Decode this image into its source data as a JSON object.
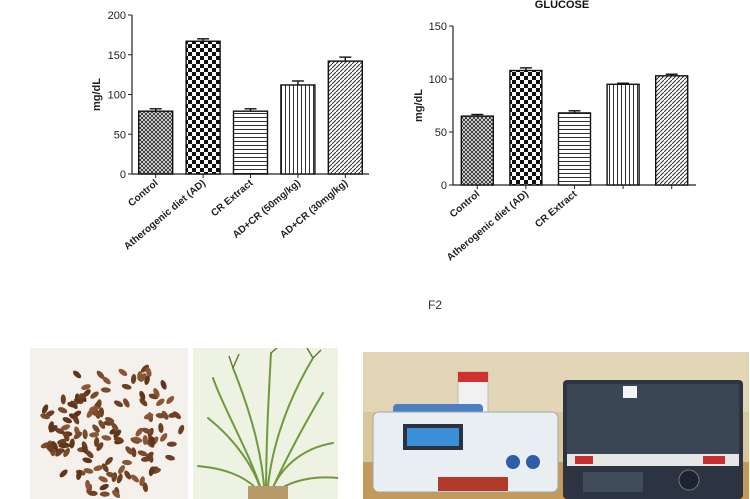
{
  "chart_data": [
    {
      "type": "bar",
      "title": "",
      "ylabel": "mg/dL",
      "ylim": [
        0,
        200
      ],
      "yticks": [
        0,
        50,
        100,
        150,
        200
      ],
      "categories": [
        "Control",
        "Atherogenic diet (AD)",
        "CR Extract",
        "AD+CR (50mg/kg)",
        "AD+CR (30mg/kg)"
      ],
      "values": [
        79,
        167,
        79,
        112,
        142
      ],
      "errors": [
        3,
        3,
        3,
        5,
        5
      ]
    },
    {
      "type": "bar",
      "title": "GLUCOSE",
      "ylabel": "mg/dL",
      "ylim": [
        0,
        150
      ],
      "yticks": [
        0,
        50,
        100,
        150
      ],
      "categories": [
        "Control",
        "Atherogenic diet (AD)",
        "CR Extract",
        "",
        ""
      ],
      "values": [
        65,
        108,
        68,
        95,
        103
      ],
      "errors": [
        1.5,
        2.5,
        2,
        1,
        1.5
      ]
    }
  ],
  "figure_label": "F2",
  "photos": [
    {
      "name": "seeds-photo",
      "colors": {
        "bg": "#f4f1ec",
        "seed": "#7a4a2a"
      }
    },
    {
      "name": "grass-plant-photo",
      "colors": {
        "bg": "#e9efd8",
        "plant": "#6f9a3c"
      }
    },
    {
      "name": "lab-analyzer-photo",
      "colors": {
        "wall": "#d9c79c",
        "bench": "#c49a5a",
        "device": "#e8eef2",
        "screen": "#3a8fd8",
        "machine": "#2b3440"
      }
    }
  ]
}
